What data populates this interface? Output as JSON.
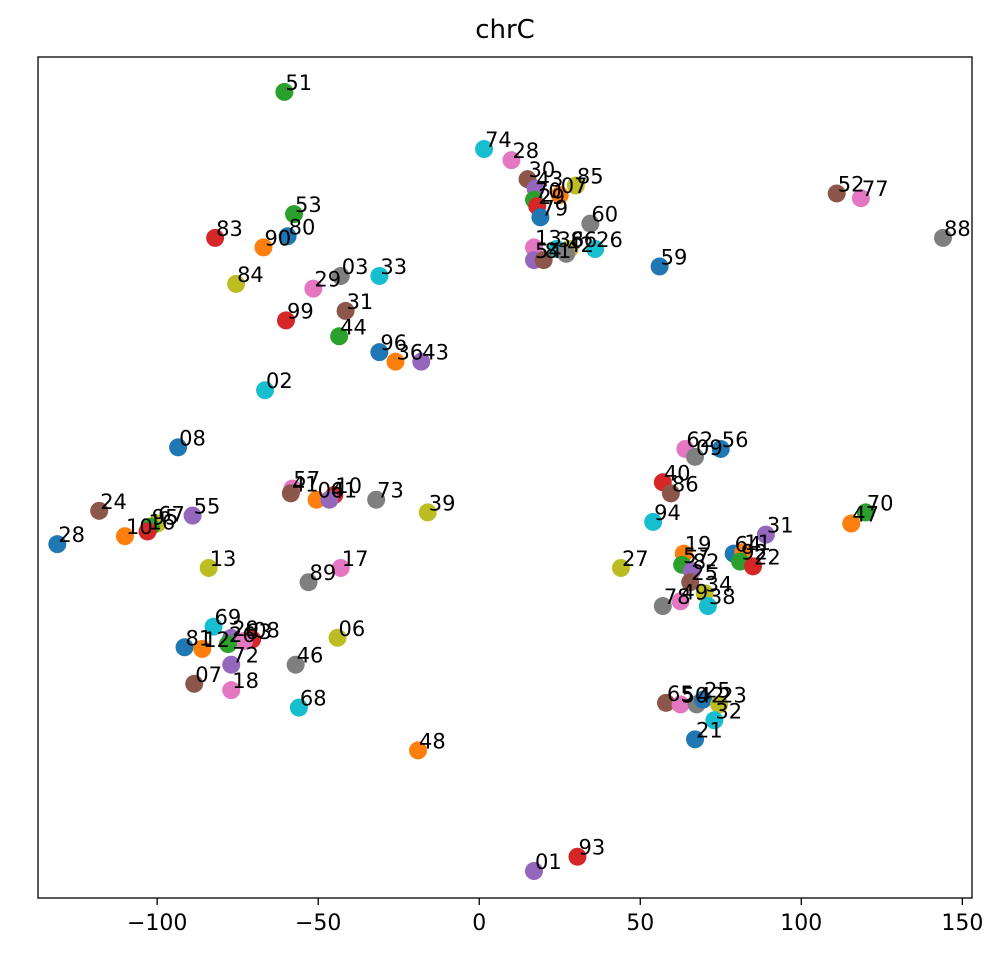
{
  "chart_data": {
    "type": "scatter",
    "title": "chrC",
    "xlabel": "",
    "ylabel": "",
    "xlim": [
      -137,
      153
    ],
    "ylim": [
      -263,
      2
    ],
    "xticks": [
      -100,
      -50,
      0,
      50,
      100,
      150
    ],
    "xtick_labels": [
      "−100",
      "−50",
      "0",
      "50",
      "100",
      "150"
    ],
    "yticks_visible": false,
    "grid": false,
    "legend": false,
    "colors": [
      "#1f77b4",
      "#ff7f0e",
      "#2ca02c",
      "#d62728",
      "#9467bd",
      "#8c564b",
      "#e377c2",
      "#7f7f7f",
      "#bcbd22",
      "#17becf"
    ],
    "points": [
      {
        "label": "51",
        "x": -60.5,
        "y": -9,
        "color": "#2ca02c"
      },
      {
        "label": "74",
        "x": 1.5,
        "y": -27,
        "color": "#17becf"
      },
      {
        "label": "28",
        "x": 10,
        "y": -30.5,
        "color": "#e377c2"
      },
      {
        "label": "30",
        "x": 15,
        "y": -36.5,
        "color": "#8c564b"
      },
      {
        "label": "43",
        "x": 17.5,
        "y": -39.5,
        "color": "#9467bd"
      },
      {
        "label": "85",
        "x": 30,
        "y": -38.5,
        "color": "#bcbd22"
      },
      {
        "label": "07",
        "x": 25,
        "y": -41.5,
        "color": "#ff7f0e"
      },
      {
        "label": "70",
        "x": 17,
        "y": -43,
        "color": "#2ca02c"
      },
      {
        "label": "29",
        "x": 18,
        "y": -45,
        "color": "#d62728"
      },
      {
        "label": "79",
        "x": 19,
        "y": -48.5,
        "color": "#1f77b4"
      },
      {
        "label": "60",
        "x": 34.5,
        "y": -50.5,
        "color": "#7f7f7f"
      },
      {
        "label": "13",
        "x": 17,
        "y": -58,
        "color": "#e377c2"
      },
      {
        "label": "36",
        "x": 24,
        "y": -58.5,
        "color": "#17becf"
      },
      {
        "label": "86",
        "x": 28,
        "y": -58.5,
        "color": "#bcbd22"
      },
      {
        "label": "26",
        "x": 36,
        "y": -58.5,
        "color": "#17becf"
      },
      {
        "label": "54",
        "x": 17,
        "y": -62,
        "color": "#9467bd"
      },
      {
        "label": "81",
        "x": 20,
        "y": -62,
        "color": "#8c564b"
      },
      {
        "label": "42",
        "x": 27,
        "y": -60,
        "color": "#7f7f7f"
      },
      {
        "label": "52",
        "x": 111,
        "y": -41,
        "color": "#8c564b"
      },
      {
        "label": "77",
        "x": 118.5,
        "y": -42.5,
        "color": "#e377c2"
      },
      {
        "label": "88",
        "x": 144,
        "y": -55,
        "color": "#7f7f7f"
      },
      {
        "label": "59",
        "x": 56,
        "y": -64,
        "color": "#1f77b4"
      },
      {
        "label": "53",
        "x": -57.5,
        "y": -47.5,
        "color": "#2ca02c"
      },
      {
        "label": "80",
        "x": -59.5,
        "y": -54.5,
        "color": "#1f77b4"
      },
      {
        "label": "83",
        "x": -82,
        "y": -55,
        "color": "#d62728"
      },
      {
        "label": "90",
        "x": -67,
        "y": -58,
        "color": "#ff7f0e"
      },
      {
        "label": "84",
        "x": -75.5,
        "y": -69.5,
        "color": "#bcbd22"
      },
      {
        "label": "29",
        "x": -51.5,
        "y": -71,
        "color": "#e377c2"
      },
      {
        "label": "03",
        "x": -43,
        "y": -67,
        "color": "#7f7f7f"
      },
      {
        "label": "33",
        "x": -31,
        "y": -67,
        "color": "#17becf"
      },
      {
        "label": "31",
        "x": -41.5,
        "y": -78,
        "color": "#8c564b"
      },
      {
        "label": "99",
        "x": -60,
        "y": -81,
        "color": "#d62728"
      },
      {
        "label": "44",
        "x": -43.5,
        "y": -86,
        "color": "#2ca02c"
      },
      {
        "label": "96",
        "x": -31,
        "y": -91,
        "color": "#1f77b4"
      },
      {
        "label": "36",
        "x": -26,
        "y": -94,
        "color": "#ff7f0e"
      },
      {
        "label": "43",
        "x": -18,
        "y": -94,
        "color": "#9467bd"
      },
      {
        "label": "02",
        "x": -66.5,
        "y": -103,
        "color": "#17becf"
      },
      {
        "label": "08",
        "x": -93.5,
        "y": -121,
        "color": "#1f77b4"
      },
      {
        "label": "57",
        "x": -58,
        "y": -134,
        "color": "#e377c2"
      },
      {
        "label": "41",
        "x": -58.5,
        "y": -135.5,
        "color": "#8c564b"
      },
      {
        "label": "04",
        "x": -50.5,
        "y": -137.5,
        "color": "#ff7f0e"
      },
      {
        "label": "10",
        "x": -45,
        "y": -136,
        "color": "#d62728"
      },
      {
        "label": "61",
        "x": -46.5,
        "y": -137.5,
        "color": "#9467bd"
      },
      {
        "label": "73",
        "x": -32,
        "y": -137.5,
        "color": "#7f7f7f"
      },
      {
        "label": "39",
        "x": -16,
        "y": -141.5,
        "color": "#bcbd22"
      },
      {
        "label": "24",
        "x": -118,
        "y": -141,
        "color": "#8c564b"
      },
      {
        "label": "67",
        "x": -100,
        "y": -145,
        "color": "#bcbd22"
      },
      {
        "label": "55",
        "x": -89,
        "y": -142.5,
        "color": "#9467bd"
      },
      {
        "label": "95",
        "x": -102,
        "y": -146,
        "color": "#2ca02c"
      },
      {
        "label": "16",
        "x": -103,
        "y": -147.5,
        "color": "#d62728"
      },
      {
        "label": "10",
        "x": -110,
        "y": -149,
        "color": "#ff7f0e"
      },
      {
        "label": "28",
        "x": -131,
        "y": -151.5,
        "color": "#1f77b4"
      },
      {
        "label": "13",
        "x": -84,
        "y": -159,
        "color": "#bcbd22"
      },
      {
        "label": "17",
        "x": -43,
        "y": -159,
        "color": "#e377c2"
      },
      {
        "label": "89",
        "x": -53,
        "y": -163.5,
        "color": "#7f7f7f"
      },
      {
        "label": "62",
        "x": 64,
        "y": -121.5,
        "color": "#e377c2"
      },
      {
        "label": "09",
        "x": 67,
        "y": -124,
        "color": "#7f7f7f"
      },
      {
        "label": "56",
        "x": 75,
        "y": -121.5,
        "color": "#1f77b4"
      },
      {
        "label": "40",
        "x": 57,
        "y": -132,
        "color": "#d62728"
      },
      {
        "label": "86",
        "x": 59.5,
        "y": -135.5,
        "color": "#8c564b"
      },
      {
        "label": "94",
        "x": 54,
        "y": -144.5,
        "color": "#17becf"
      },
      {
        "label": "70",
        "x": 120,
        "y": -141.5,
        "color": "#2ca02c"
      },
      {
        "label": "47",
        "x": 115.5,
        "y": -145,
        "color": "#ff7f0e"
      },
      {
        "label": "31",
        "x": 89,
        "y": -148.5,
        "color": "#9467bd"
      },
      {
        "label": "27",
        "x": 44,
        "y": -159,
        "color": "#bcbd22"
      },
      {
        "label": "19",
        "x": 63.5,
        "y": -154.5,
        "color": "#ff7f0e"
      },
      {
        "label": "57",
        "x": 63,
        "y": -158,
        "color": "#2ca02c"
      },
      {
        "label": "82",
        "x": 66,
        "y": -160,
        "color": "#9467bd"
      },
      {
        "label": "64",
        "x": 79,
        "y": -154.5,
        "color": "#1f77b4"
      },
      {
        "label": "11",
        "x": 82,
        "y": -154,
        "color": "#ff7f0e"
      },
      {
        "label": "92",
        "x": 81,
        "y": -157,
        "color": "#2ca02c"
      },
      {
        "label": "22",
        "x": 85,
        "y": -158.5,
        "color": "#d62728"
      },
      {
        "label": "25",
        "x": 65.5,
        "y": -163.5,
        "color": "#8c564b"
      },
      {
        "label": "34",
        "x": 70,
        "y": -167,
        "color": "#bcbd22"
      },
      {
        "label": "78",
        "x": 57,
        "y": -171,
        "color": "#7f7f7f"
      },
      {
        "label": "49",
        "x": 62.5,
        "y": -169.5,
        "color": "#e377c2"
      },
      {
        "label": "38",
        "x": 71,
        "y": -171,
        "color": "#17becf"
      },
      {
        "label": "69",
        "x": -82.5,
        "y": -177.5,
        "color": "#17becf"
      },
      {
        "label": "29",
        "x": -77,
        "y": -181,
        "color": "#9467bd"
      },
      {
        "label": "08",
        "x": -70.5,
        "y": -181.5,
        "color": "#d62728"
      },
      {
        "label": "63",
        "x": -73,
        "y": -182,
        "color": "#e377c2"
      },
      {
        "label": "06",
        "x": -44,
        "y": -181,
        "color": "#bcbd22"
      },
      {
        "label": "81",
        "x": -91.5,
        "y": -184,
        "color": "#1f77b4"
      },
      {
        "label": "12",
        "x": -86,
        "y": -184.5,
        "color": "#ff7f0e"
      },
      {
        "label": "26",
        "x": -78,
        "y": -183,
        "color": "#2ca02c"
      },
      {
        "label": "72",
        "x": -77,
        "y": -189.5,
        "color": "#9467bd"
      },
      {
        "label": "46",
        "x": -57,
        "y": -189.5,
        "color": "#7f7f7f"
      },
      {
        "label": "07",
        "x": -88.5,
        "y": -195.5,
        "color": "#8c564b"
      },
      {
        "label": "18",
        "x": -77,
        "y": -197.5,
        "color": "#e377c2"
      },
      {
        "label": "68",
        "x": -56,
        "y": -203,
        "color": "#17becf"
      },
      {
        "label": "65",
        "x": 58,
        "y": -201.5,
        "color": "#8c564b"
      },
      {
        "label": "50",
        "x": 62.5,
        "y": -202,
        "color": "#e377c2"
      },
      {
        "label": "42",
        "x": 67.5,
        "y": -202,
        "color": "#7f7f7f"
      },
      {
        "label": "25",
        "x": 69.5,
        "y": -200.5,
        "color": "#1f77b4"
      },
      {
        "label": "23",
        "x": 74.5,
        "y": -202,
        "color": "#bcbd22"
      },
      {
        "label": "32",
        "x": 73,
        "y": -207,
        "color": "#17becf"
      },
      {
        "label": "21",
        "x": 67,
        "y": -213,
        "color": "#1f77b4"
      },
      {
        "label": "48",
        "x": -19,
        "y": -216.5,
        "color": "#ff7f0e"
      },
      {
        "label": "93",
        "x": 30.5,
        "y": -250,
        "color": "#d62728"
      },
      {
        "label": "01",
        "x": 17,
        "y": -254.5,
        "color": "#9467bd"
      }
    ]
  }
}
